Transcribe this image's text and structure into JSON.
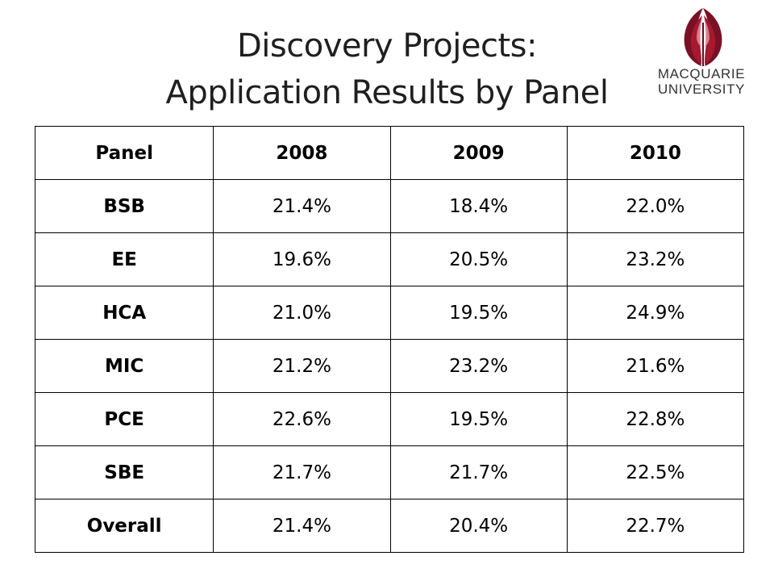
{
  "slide": {
    "title_line1": "Discovery Projects:",
    "title_line2": "Application Results by Panel"
  },
  "logo": {
    "line1": "MACQUARIE",
    "line2": "UNIVERSITY",
    "icon": "macquarie-emblem-icon",
    "colors": {
      "crimson": "#a6192e",
      "dark_red": "#7a1025",
      "text": "#333333"
    }
  },
  "table": {
    "headers": [
      "Panel",
      "2008",
      "2009",
      "2010"
    ],
    "rows": [
      [
        "BSB",
        "21.4%",
        "18.4%",
        "22.0%"
      ],
      [
        "EE",
        "19.6%",
        "20.5%",
        "23.2%"
      ],
      [
        "HCA",
        "21.0%",
        "19.5%",
        "24.9%"
      ],
      [
        "MIC",
        "21.2%",
        "23.2%",
        "21.6%"
      ],
      [
        "PCE",
        "22.6%",
        "19.5%",
        "22.8%"
      ],
      [
        "SBE",
        "21.7%",
        "21.7%",
        "22.5%"
      ],
      [
        "Overall",
        "21.4%",
        "20.4%",
        "22.7%"
      ]
    ]
  }
}
